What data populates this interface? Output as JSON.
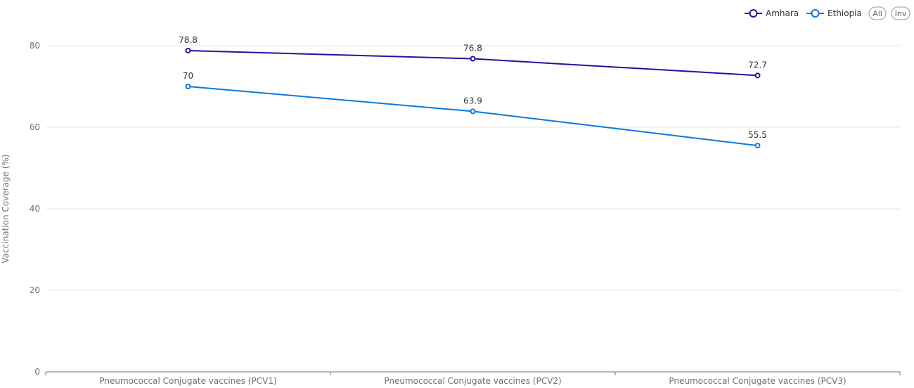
{
  "chart_data": {
    "type": "line",
    "categories": [
      "Pneumococcal Conjugate vaccines (PCV1)",
      "Pneumococcal Conjugate vaccines (PCV2)",
      "Pneumococcal Conjugate vaccines (PCV3)"
    ],
    "series": [
      {
        "name": "Amhara",
        "values": [
          78.8,
          76.8,
          72.7
        ],
        "color": "#2e0d9e"
      },
      {
        "name": "Ethiopia",
        "values": [
          70,
          63.9,
          55.5
        ],
        "color": "#0a78e0"
      }
    ],
    "ylabel": "Vaccination Coverage (%)",
    "ylim": [
      0,
      80
    ],
    "yticks": [
      0,
      20,
      40,
      60,
      80
    ],
    "grid": true,
    "legend_position": "top-right",
    "data_labels": true
  },
  "legend": {
    "all_label": "All",
    "inv_label": "Inv"
  }
}
